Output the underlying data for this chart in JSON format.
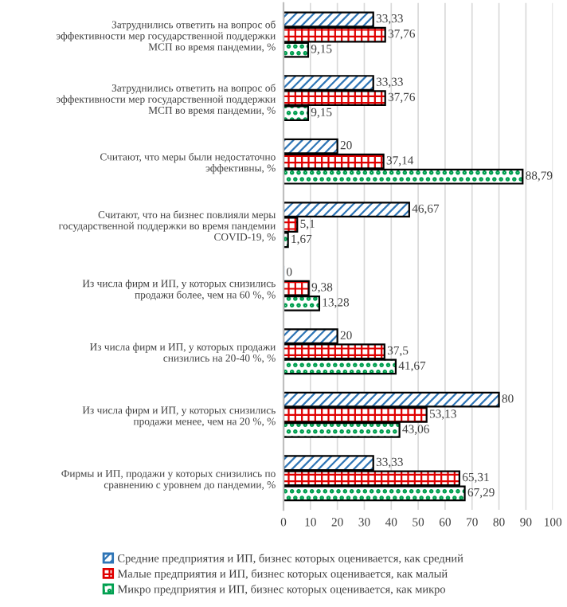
{
  "chart_data": {
    "type": "bar",
    "orientation": "horizontal",
    "categories": [
      "Затруднились ответить на вопрос об эффективности мер государственной поддержки МСП во время пандемии, %",
      "Затруднились ответить на вопрос об эффективности мер государственной поддержки МСП во время пандемии, %",
      "Считают, что меры были недостаточно эффективны, %",
      "Считают, что на бизнес повлияли меры государственной поддержки во время пандемии COVID-19, %",
      "Из числа фирм и ИП, у которых снизились продажи более, чем на 60 %, %",
      "Из числа фирм и ИП, у которых продажи снизились на 20-40 %, %",
      "Из числа фирм и ИП, у которых снизились продажи менее, чем на 20 %, %",
      "Фирмы и ИП, продажи у которых снизились по сравнению с уровнем до пандемии, %"
    ],
    "series": [
      {
        "name": "Средние предприятия и ИП, бизнес которых оценивается, как средний",
        "color": "#2e75b6",
        "values": [
          33.33,
          33.33,
          20,
          46.67,
          0,
          20,
          80,
          33.33
        ],
        "value_labels": [
          "33,33",
          "33,33",
          "20",
          "46,67",
          "0",
          "20",
          "80",
          "33,33"
        ]
      },
      {
        "name": "Малые предприятия и ИП, бизнес которых оценивается, как малый",
        "color": "#e00000",
        "values": [
          37.76,
          37.76,
          37.14,
          5.1,
          9.38,
          37.5,
          53.13,
          65.31
        ],
        "value_labels": [
          "37,76",
          "37,76",
          "37,14",
          "5,1",
          "9,38",
          "37,5",
          "53,13",
          "65,31"
        ]
      },
      {
        "name": "Микро предприятия и ИП, бизнес которых оценивается, как микро",
        "color": "#00a050",
        "values": [
          9.15,
          9.15,
          88.79,
          1.67,
          13.28,
          41.67,
          43.06,
          67.29
        ],
        "value_labels": [
          "9,15",
          "9,15",
          "88,79",
          "1,67",
          "13,28",
          "41,67",
          "43,06",
          "67,29"
        ]
      }
    ],
    "xlim": [
      0,
      100
    ],
    "xticks": [
      0,
      10,
      20,
      30,
      40,
      50,
      60,
      70,
      80,
      90,
      100
    ],
    "grid": "x",
    "legend": "bottom"
  }
}
